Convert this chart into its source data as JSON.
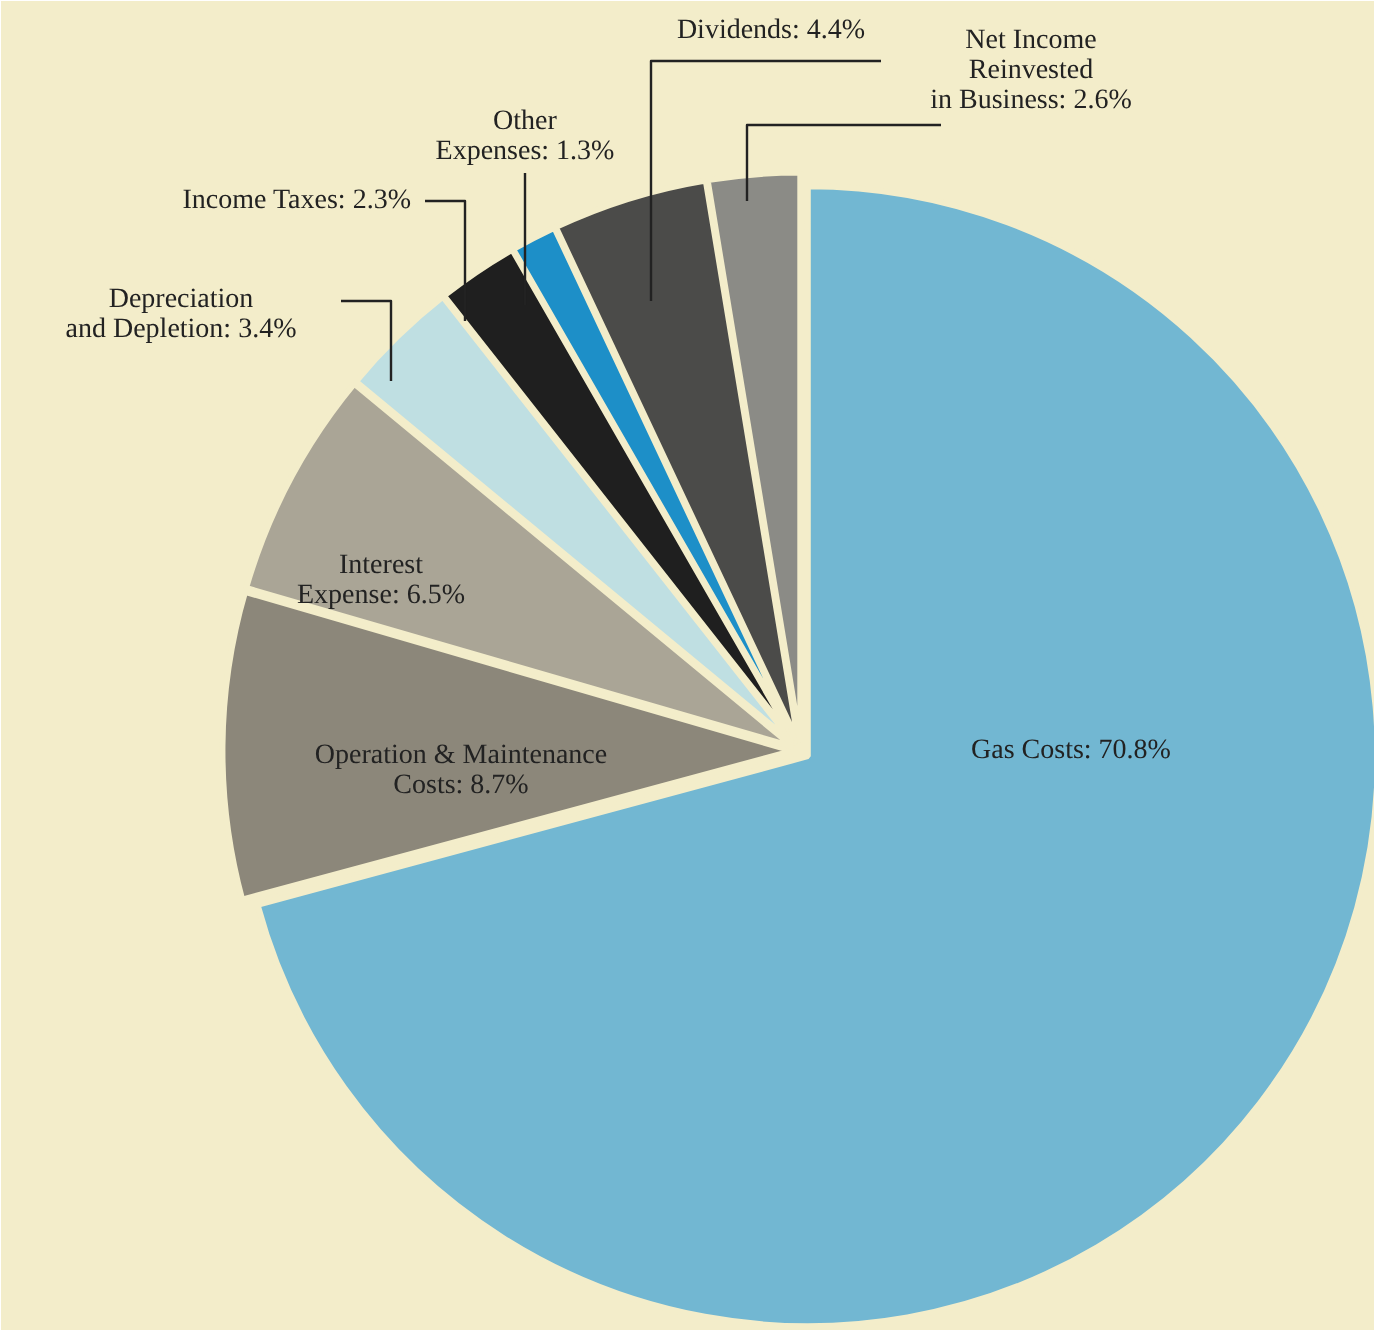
{
  "chart_data": {
    "type": "pie",
    "categories": [
      "Gas Costs",
      "Operation & Maintenance Costs",
      "Interest Expense",
      "Depreciation and Depletion",
      "Income Taxes",
      "Other Expenses",
      "Dividends",
      "Net Income Reinvested in Business"
    ],
    "value_labels": [
      "70.8%",
      "8.7%",
      "6.5%",
      "3.4%",
      "2.3%",
      "1.3%",
      "4.4%",
      "2.6%"
    ],
    "values": [
      70.8,
      8.7,
      6.5,
      3.4,
      2.3,
      1.3,
      4.4,
      2.6
    ],
    "colors": [
      "#72b7d2",
      "#8c877a",
      "#aaa596",
      "#bfdfe2",
      "#1f1f1f",
      "#1d8fc8",
      "#4b4b49",
      "#8b8b86"
    ],
    "data_labels": false
  }
}
